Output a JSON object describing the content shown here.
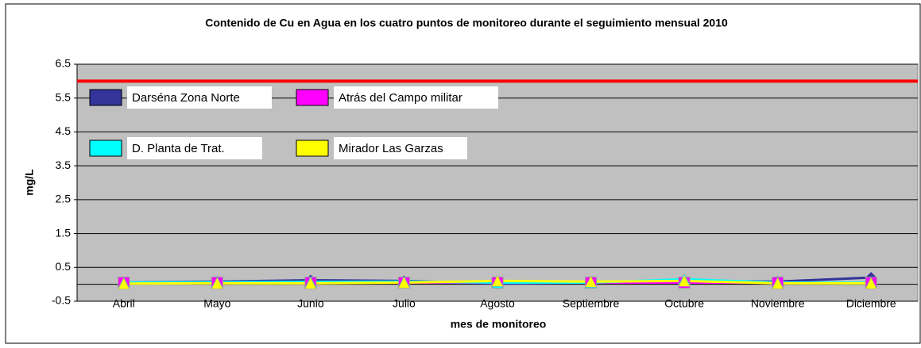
{
  "chart_data": {
    "type": "line",
    "title": "Contenido de Cu en Agua en los cuatro puntos de monitoreo durante el seguimiento mensual 2010",
    "y_label": "mg/L",
    "x_label": "mes de monitoreo",
    "categories": [
      "Abril",
      "Mayo",
      "Junio",
      "Julio",
      "Agosto",
      "Septiembre",
      "Octubre",
      "Noviembre",
      "Diciembre"
    ],
    "series": [
      {
        "name": "Darséna Zona Norte",
        "color": "#333399",
        "marker": "diamond",
        "values": [
          0.05,
          0.08,
          0.12,
          0.1,
          0.02,
          0.05,
          0.1,
          0.08,
          0.2
        ]
      },
      {
        "name": "Atrás del Campo militar",
        "color": "#ff00ff",
        "marker": "square",
        "values": [
          0.05,
          0.05,
          0.05,
          0.05,
          0.05,
          0.05,
          0.05,
          0.05,
          0.05
        ]
      },
      {
        "name": "D. Planta de Trat.",
        "color": "#00ffff",
        "marker": "triangle",
        "values": [
          0.05,
          0.06,
          0.07,
          0.08,
          0.05,
          0.05,
          0.15,
          0.05,
          0.05
        ]
      },
      {
        "name": "Mirador Las Garzas",
        "color": "#ffff00",
        "marker": "triangle",
        "values": [
          0.02,
          0.03,
          0.03,
          0.05,
          0.1,
          0.08,
          0.1,
          0.03,
          0.03
        ]
      }
    ],
    "hline": {
      "value": 6,
      "color": "#ff0000"
    },
    "ylim": [
      -0.5,
      6.5
    ],
    "yticks": [
      -0.5,
      0.5,
      1.5,
      2.5,
      3.5,
      4.5,
      5.5,
      6.5
    ],
    "grid": true
  }
}
